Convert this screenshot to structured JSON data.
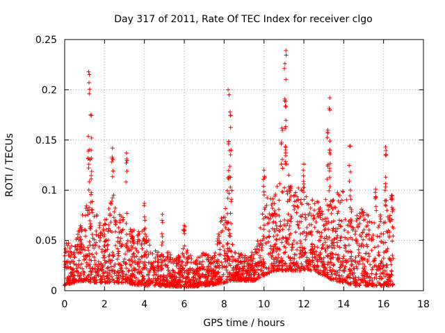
{
  "chart_data": {
    "type": "scatter",
    "title": "Day 317 of 2011, Rate Of TEC Index for receiver clgo",
    "xlabel": "GPS time / hours",
    "ylabel": "ROTI / TECUs",
    "xlim": [
      0,
      18
    ],
    "ylim": [
      0,
      0.25
    ],
    "xticks": [
      0,
      2,
      4,
      6,
      8,
      10,
      12,
      14,
      16,
      18
    ],
    "yticks": [
      0,
      0.05,
      0.1,
      0.15,
      0.2,
      0.25
    ],
    "xtick_labels": [
      "0",
      "2",
      "4",
      "6",
      "8",
      "10",
      "12",
      "14",
      "16",
      "18"
    ],
    "ytick_labels": [
      "0",
      "0.05",
      "0.1",
      "0.15",
      "0.2",
      "0.25"
    ],
    "grid": true,
    "marker": "+",
    "color": "#ff0000",
    "series": [
      {
        "name": "ROTI",
        "x_range": [
          0,
          16.5
        ],
        "peaks": [
          {
            "x": 1.2,
            "y": 0.218
          },
          {
            "x": 1.22,
            "y": 0.207
          },
          {
            "x": 1.3,
            "y": 0.175
          },
          {
            "x": 1.35,
            "y": 0.152
          },
          {
            "x": 2.4,
            "y": 0.142
          },
          {
            "x": 3.1,
            "y": 0.137
          },
          {
            "x": 4.0,
            "y": 0.087
          },
          {
            "x": 4.9,
            "y": 0.076
          },
          {
            "x": 6.0,
            "y": 0.065
          },
          {
            "x": 8.2,
            "y": 0.2
          },
          {
            "x": 8.25,
            "y": 0.195
          },
          {
            "x": 8.3,
            "y": 0.178
          },
          {
            "x": 8.35,
            "y": 0.14
          },
          {
            "x": 10.0,
            "y": 0.12
          },
          {
            "x": 11.1,
            "y": 0.239
          },
          {
            "x": 11.05,
            "y": 0.226
          },
          {
            "x": 11.1,
            "y": 0.183
          },
          {
            "x": 10.9,
            "y": 0.162
          },
          {
            "x": 12.0,
            "y": 0.126
          },
          {
            "x": 13.3,
            "y": 0.192
          },
          {
            "x": 13.3,
            "y": 0.18
          },
          {
            "x": 13.2,
            "y": 0.16
          },
          {
            "x": 14.3,
            "y": 0.144
          },
          {
            "x": 15.6,
            "y": 0.101
          },
          {
            "x": 16.1,
            "y": 0.143
          },
          {
            "x": 16.1,
            "y": 0.135
          },
          {
            "x": 16.4,
            "y": 0.095
          }
        ],
        "envelope": [
          {
            "x": 0.0,
            "low": 0.005,
            "high": 0.05
          },
          {
            "x": 0.5,
            "low": 0.008,
            "high": 0.045
          },
          {
            "x": 1.0,
            "low": 0.01,
            "high": 0.09
          },
          {
            "x": 1.5,
            "low": 0.008,
            "high": 0.08
          },
          {
            "x": 2.0,
            "low": 0.008,
            "high": 0.07
          },
          {
            "x": 2.5,
            "low": 0.008,
            "high": 0.1
          },
          {
            "x": 3.0,
            "low": 0.008,
            "high": 0.07
          },
          {
            "x": 3.5,
            "low": 0.006,
            "high": 0.06
          },
          {
            "x": 4.0,
            "low": 0.005,
            "high": 0.06
          },
          {
            "x": 4.5,
            "low": 0.005,
            "high": 0.04
          },
          {
            "x": 5.0,
            "low": 0.004,
            "high": 0.045
          },
          {
            "x": 5.5,
            "low": 0.004,
            "high": 0.03
          },
          {
            "x": 6.0,
            "low": 0.004,
            "high": 0.045
          },
          {
            "x": 6.5,
            "low": 0.004,
            "high": 0.03
          },
          {
            "x": 7.0,
            "low": 0.005,
            "high": 0.04
          },
          {
            "x": 7.5,
            "low": 0.006,
            "high": 0.035
          },
          {
            "x": 8.0,
            "low": 0.008,
            "high": 0.09
          },
          {
            "x": 8.5,
            "low": 0.01,
            "high": 0.04
          },
          {
            "x": 9.0,
            "low": 0.01,
            "high": 0.035
          },
          {
            "x": 9.5,
            "low": 0.01,
            "high": 0.04
          },
          {
            "x": 10.0,
            "low": 0.015,
            "high": 0.09
          },
          {
            "x": 10.5,
            "low": 0.02,
            "high": 0.1
          },
          {
            "x": 11.0,
            "low": 0.02,
            "high": 0.12
          },
          {
            "x": 11.5,
            "low": 0.02,
            "high": 0.11
          },
          {
            "x": 12.0,
            "low": 0.02,
            "high": 0.1
          },
          {
            "x": 12.5,
            "low": 0.02,
            "high": 0.09
          },
          {
            "x": 13.0,
            "low": 0.015,
            "high": 0.09
          },
          {
            "x": 13.5,
            "low": 0.01,
            "high": 0.1
          },
          {
            "x": 14.0,
            "low": 0.008,
            "high": 0.1
          },
          {
            "x": 14.5,
            "low": 0.005,
            "high": 0.09
          },
          {
            "x": 15.0,
            "low": 0.005,
            "high": 0.08
          },
          {
            "x": 15.5,
            "low": 0.005,
            "high": 0.07
          },
          {
            "x": 16.0,
            "low": 0.005,
            "high": 0.08
          },
          {
            "x": 16.5,
            "low": 0.005,
            "high": 0.09
          }
        ]
      }
    ]
  }
}
